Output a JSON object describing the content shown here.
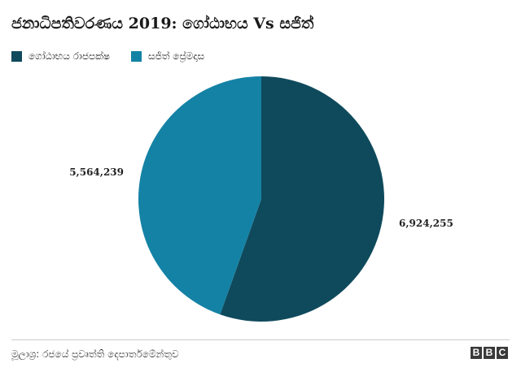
{
  "chart_data": {
    "type": "pie",
    "title": "ජනාධිපතිවරණය 2019: ගෝඨාභය Vs සජිත්",
    "series": [
      {
        "name": "ගෝඨාභය රාජපක්ෂ",
        "value": 6924255,
        "label": "6,924,255",
        "color": "#0f4a5c"
      },
      {
        "name": "සජිත් ප්‍රේමදාස",
        "value": 5564239,
        "label": "5,564,239",
        "color": "#1482a5"
      }
    ],
    "legend_position": "top-left"
  },
  "footer": {
    "source": "මූලාශ්‍ර: රජයේ ප්‍රවෘත්ති දෙපාර්තමේන්තුව",
    "logo_letters": [
      "B",
      "B",
      "C"
    ]
  }
}
